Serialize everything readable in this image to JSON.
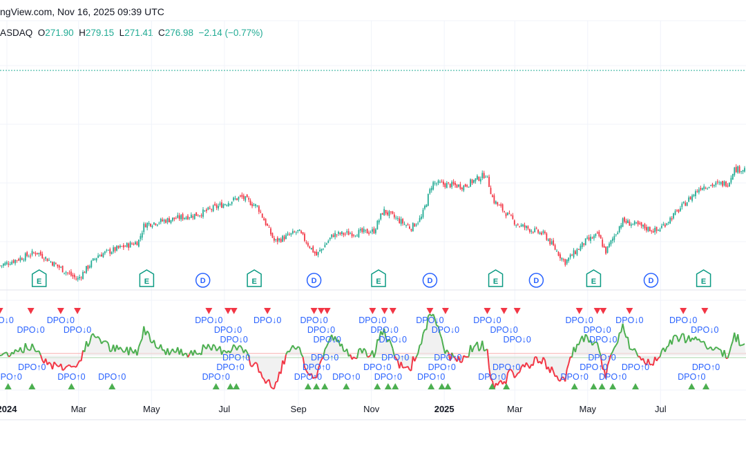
{
  "header": {
    "source_line": "ngView.com, Nov 16, 2025 09:39 UTC",
    "exchange": "ASDAQ",
    "open_label": "O",
    "open": "271.90",
    "high_label": "H",
    "high": "279.15",
    "low_label": "L",
    "low": "271.41",
    "close_label": "C",
    "close": "276.98",
    "change": "−2.14",
    "change_pct": "(−0.77%)"
  },
  "colors": {
    "up": "#22ab94",
    "down": "#f23645",
    "osc_up": "#4caf50",
    "osc_down": "#f23645",
    "signal_text": "#2962ff",
    "earnings": "#089981",
    "dividend": "#2962ff"
  },
  "chart_data": {
    "type": "line",
    "price_series_note_free": true,
    "price": {
      "style": "candlestick",
      "dates": [
        "2023-12-26",
        "2024-01-26",
        "2024-02-29",
        "2024-03-17",
        "2024-04-20",
        "2024-04-25",
        "2024-06-10",
        "2024-07-15",
        "2024-07-29",
        "2024-08-12",
        "2024-09-01",
        "2024-09-16",
        "2024-09-30",
        "2024-11-03",
        "2024-11-11",
        "2024-12-04",
        "2024-12-13",
        "2024-12-22",
        "2025-01-17",
        "2025-02-05",
        "2025-02-11",
        "2025-03-03",
        "2025-03-26",
        "2025-04-12",
        "2025-04-29",
        "2025-05-10",
        "2025-05-16",
        "2025-05-30",
        "2025-06-28",
        "2025-07-13",
        "2025-08-04",
        "2025-08-27",
        "2025-08-31"
      ],
      "values": [
        172.0,
        184.7,
        159.3,
        181.6,
        194.3,
        210.2,
        219.8,
        235.7,
        226.2,
        194.3,
        203.9,
        181.6,
        200.7,
        203.9,
        223.0,
        207.0,
        216.6,
        248.4,
        245.3,
        256.7,
        232.5,
        210.2,
        200.7,
        175.2,
        194.3,
        200.7,
        184.7,
        213.4,
        203.9,
        219.8,
        245.3,
        248.4,
        261.2
      ]
    },
    "x_tick_labels": [
      {
        "date": "2024-01-01",
        "label": "2024",
        "bold": true
      },
      {
        "date": "2024-03-01",
        "label": "Mar"
      },
      {
        "date": "2024-05-01",
        "label": "May"
      },
      {
        "date": "2024-07-01",
        "label": "Jul"
      },
      {
        "date": "2024-09-01",
        "label": "Sep"
      },
      {
        "date": "2024-11-01",
        "label": "Nov"
      },
      {
        "date": "2025-01-01",
        "label": "2025",
        "bold": true
      },
      {
        "date": "2025-03-01",
        "label": "Mar"
      },
      {
        "date": "2025-05-01",
        "label": "May"
      },
      {
        "date": "2025-07-01",
        "label": "Jul"
      }
    ],
    "events": {
      "earnings_label": "E",
      "earnings": [
        "2024-01-28",
        "2024-04-27",
        "2024-07-26",
        "2024-11-07",
        "2025-02-13",
        "2025-05-06",
        "2025-08-06"
      ],
      "dividend_label": "D",
      "dividends": [
        "2024-06-13",
        "2024-09-14",
        "2024-12-20",
        "2025-03-19",
        "2025-06-23"
      ]
    },
    "oscillator": {
      "name": "DPO",
      "zero_line": 0
    },
    "signals": {
      "down_label": "DPO↓0",
      "up_label": "DPO↑0",
      "down": [
        "2023-12-26",
        "2024-01-21",
        "2024-02-15",
        "2024-02-29",
        "2024-06-18",
        "2024-07-04",
        "2024-07-09",
        "2024-08-06",
        "2024-09-14",
        "2024-09-20",
        "2024-09-25",
        "2024-11-02",
        "2024-11-12",
        "2024-11-19",
        "2024-12-20",
        "2025-01-02",
        "2025-02-06",
        "2025-02-20",
        "2025-03-03",
        "2025-04-24",
        "2025-05-09",
        "2025-05-14",
        "2025-06-05",
        "2025-07-20",
        "2025-08-07"
      ],
      "up": [
        "2024-01-02",
        "2024-01-22",
        "2024-02-24",
        "2024-03-29",
        "2024-06-24",
        "2024-07-06",
        "2024-07-11",
        "2024-09-09",
        "2024-09-16",
        "2024-09-23",
        "2024-10-11",
        "2024-11-06",
        "2024-11-15",
        "2024-11-21",
        "2024-12-21",
        "2024-12-30",
        "2025-01-04",
        "2025-02-10",
        "2025-02-22",
        "2025-04-20",
        "2025-05-06",
        "2025-05-13",
        "2025-05-22",
        "2025-06-10",
        "2025-07-27",
        "2025-08-08"
      ]
    },
    "current_price_line": true,
    "grid": true
  }
}
